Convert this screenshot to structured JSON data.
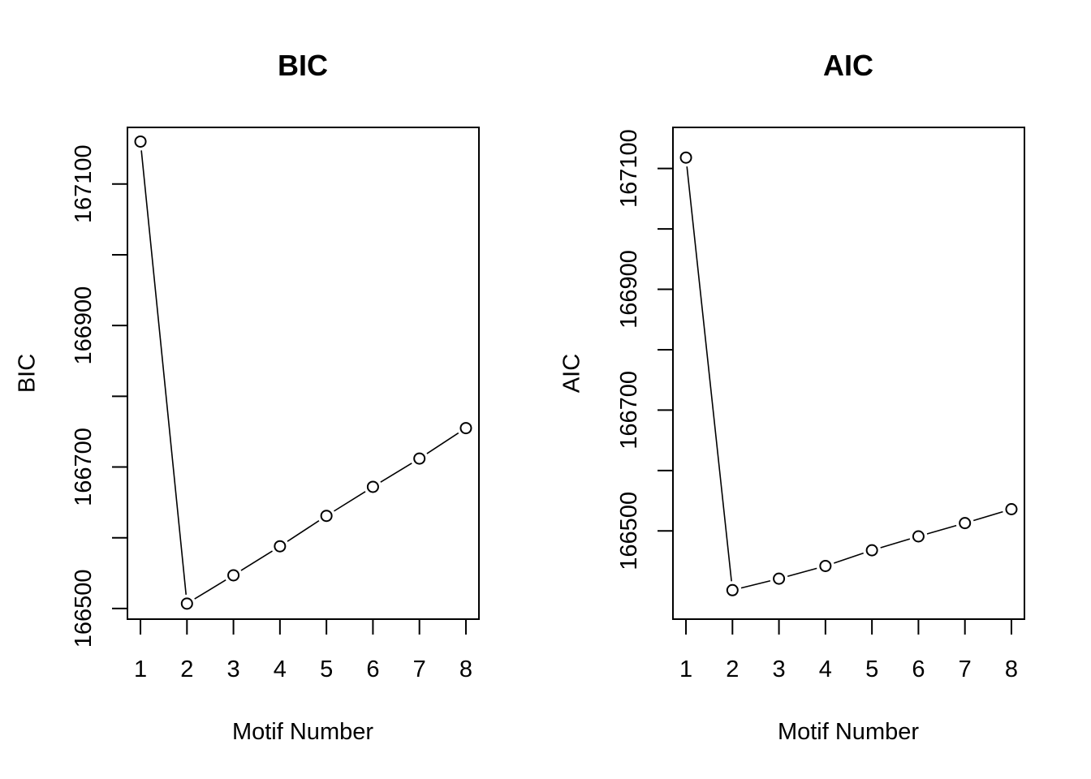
{
  "chart_data": [
    {
      "type": "line",
      "title": "BIC",
      "xlabel": "Motif Number",
      "ylabel": "BIC",
      "x": [
        1,
        2,
        3,
        4,
        5,
        6,
        7,
        8
      ],
      "values": [
        167160,
        166507,
        166547,
        166588,
        166631,
        166672,
        166712,
        166755
      ],
      "xlim": [
        0.72,
        8.28
      ],
      "ylim": [
        166485,
        167180
      ],
      "xticks": [
        "1",
        "2",
        "3",
        "4",
        "5",
        "6",
        "7",
        "8"
      ],
      "yticks": [
        166500,
        166600,
        166700,
        166800,
        166900,
        167000,
        167100
      ],
      "ytick_labels": [
        "166500",
        "",
        "166700",
        "",
        "166900",
        "",
        "167100"
      ],
      "grid": false,
      "marker": "open-circle"
    },
    {
      "type": "line",
      "title": "AIC",
      "xlabel": "Motif Number",
      "ylabel": "AIC",
      "x": [
        1,
        2,
        3,
        4,
        5,
        6,
        7,
        8
      ],
      "values": [
        167118,
        166402,
        166421,
        166442,
        166468,
        166491,
        166513,
        166536
      ],
      "xlim": [
        0.72,
        8.28
      ],
      "ylim": [
        166354,
        167168
      ],
      "xticks": [
        "1",
        "2",
        "3",
        "4",
        "5",
        "6",
        "7",
        "8"
      ],
      "yticks": [
        166500,
        166600,
        166700,
        166800,
        166900,
        167000,
        167100
      ],
      "ytick_labels": [
        "166500",
        "",
        "166700",
        "",
        "166900",
        "",
        "167100"
      ],
      "grid": false,
      "marker": "open-circle"
    }
  ]
}
